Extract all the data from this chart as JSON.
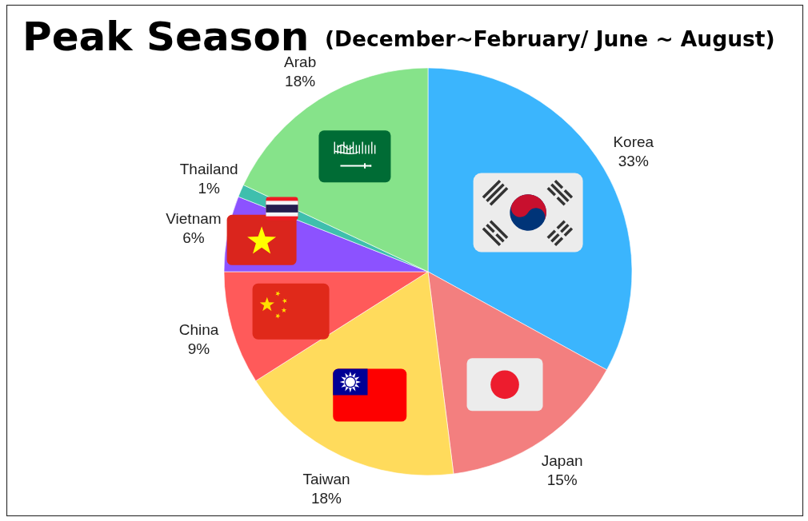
{
  "chart_data": {
    "type": "pie",
    "title": "Peak Season",
    "subtitle": "(December~February/ June ~ August)",
    "categories": [
      "Korea",
      "Japan",
      "Taiwan",
      "China",
      "Vietnam",
      "Thailand",
      "Arab"
    ],
    "values": [
      33,
      15,
      18,
      9,
      6,
      1,
      18
    ],
    "value_labels": [
      "33%",
      "15%",
      "18%",
      "9%",
      "6%",
      "1%",
      "18%"
    ],
    "colors": [
      "#3bb5fd",
      "#f37f7f",
      "#ffdb5c",
      "#ff5a5a",
      "#8c52ff",
      "#3fbfad",
      "#86e38a"
    ]
  }
}
